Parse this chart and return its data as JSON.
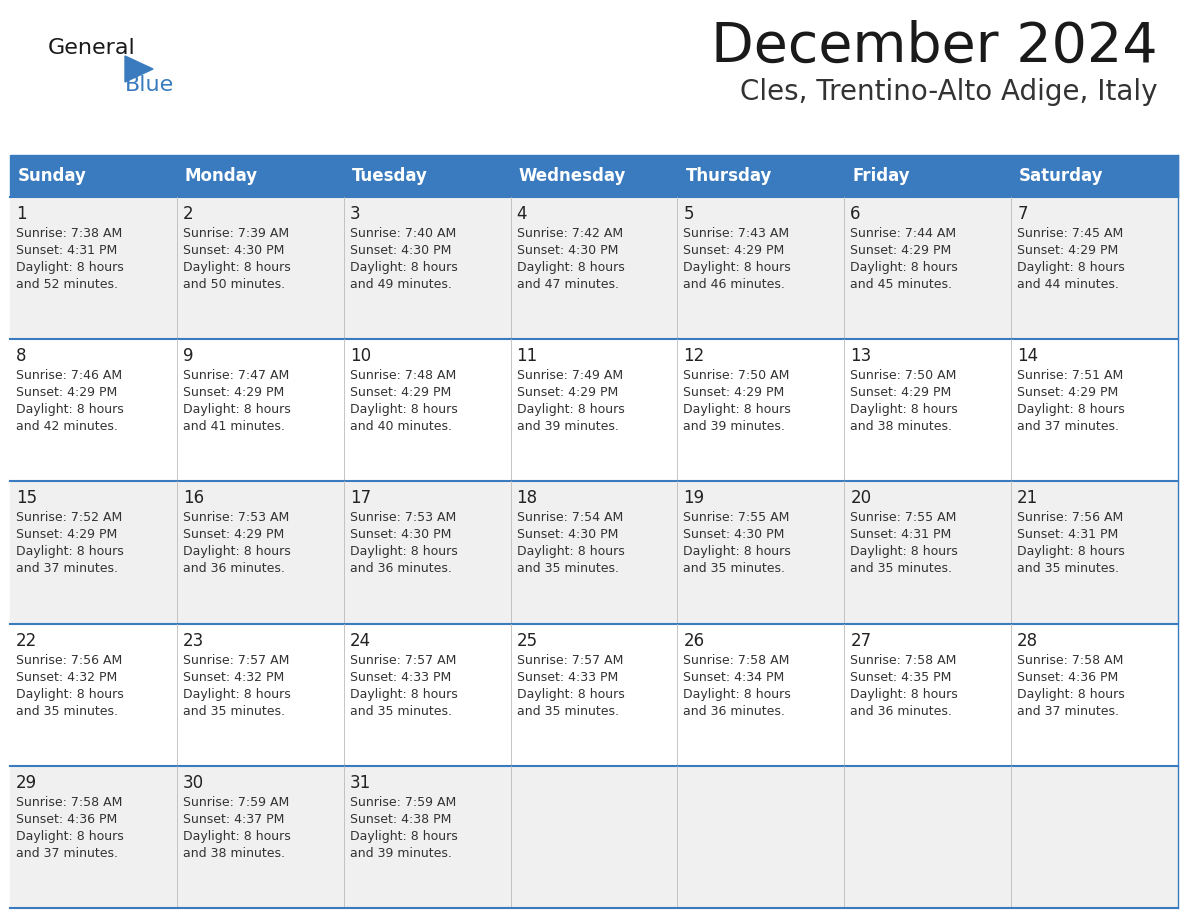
{
  "title": "December 2024",
  "subtitle": "Cles, Trentino-Alto Adige, Italy",
  "days_of_week": [
    "Sunday",
    "Monday",
    "Tuesday",
    "Wednesday",
    "Thursday",
    "Friday",
    "Saturday"
  ],
  "header_bg": "#3a7bbf",
  "header_text": "#ffffff",
  "row_bg_odd": "#f0f0f0",
  "row_bg_even": "#ffffff",
  "cell_border": "#bbbbbb",
  "row_border": "#3a7bbf",
  "day_num_color": "#222222",
  "info_text_color": "#333333",
  "title_color": "#1a1a1a",
  "subtitle_color": "#333333",
  "general_color": "#111111",
  "blue_color": "#3a7bbf",
  "calendar_data": [
    [
      {
        "day": 1,
        "sunrise": "7:38 AM",
        "sunset": "4:31 PM",
        "daylight": "8 hours and 52 minutes."
      },
      {
        "day": 2,
        "sunrise": "7:39 AM",
        "sunset": "4:30 PM",
        "daylight": "8 hours and 50 minutes."
      },
      {
        "day": 3,
        "sunrise": "7:40 AM",
        "sunset": "4:30 PM",
        "daylight": "8 hours and 49 minutes."
      },
      {
        "day": 4,
        "sunrise": "7:42 AM",
        "sunset": "4:30 PM",
        "daylight": "8 hours and 47 minutes."
      },
      {
        "day": 5,
        "sunrise": "7:43 AM",
        "sunset": "4:29 PM",
        "daylight": "8 hours and 46 minutes."
      },
      {
        "day": 6,
        "sunrise": "7:44 AM",
        "sunset": "4:29 PM",
        "daylight": "8 hours and 45 minutes."
      },
      {
        "day": 7,
        "sunrise": "7:45 AM",
        "sunset": "4:29 PM",
        "daylight": "8 hours and 44 minutes."
      }
    ],
    [
      {
        "day": 8,
        "sunrise": "7:46 AM",
        "sunset": "4:29 PM",
        "daylight": "8 hours and 42 minutes."
      },
      {
        "day": 9,
        "sunrise": "7:47 AM",
        "sunset": "4:29 PM",
        "daylight": "8 hours and 41 minutes."
      },
      {
        "day": 10,
        "sunrise": "7:48 AM",
        "sunset": "4:29 PM",
        "daylight": "8 hours and 40 minutes."
      },
      {
        "day": 11,
        "sunrise": "7:49 AM",
        "sunset": "4:29 PM",
        "daylight": "8 hours and 39 minutes."
      },
      {
        "day": 12,
        "sunrise": "7:50 AM",
        "sunset": "4:29 PM",
        "daylight": "8 hours and 39 minutes."
      },
      {
        "day": 13,
        "sunrise": "7:50 AM",
        "sunset": "4:29 PM",
        "daylight": "8 hours and 38 minutes."
      },
      {
        "day": 14,
        "sunrise": "7:51 AM",
        "sunset": "4:29 PM",
        "daylight": "8 hours and 37 minutes."
      }
    ],
    [
      {
        "day": 15,
        "sunrise": "7:52 AM",
        "sunset": "4:29 PM",
        "daylight": "8 hours and 37 minutes."
      },
      {
        "day": 16,
        "sunrise": "7:53 AM",
        "sunset": "4:29 PM",
        "daylight": "8 hours and 36 minutes."
      },
      {
        "day": 17,
        "sunrise": "7:53 AM",
        "sunset": "4:30 PM",
        "daylight": "8 hours and 36 minutes."
      },
      {
        "day": 18,
        "sunrise": "7:54 AM",
        "sunset": "4:30 PM",
        "daylight": "8 hours and 35 minutes."
      },
      {
        "day": 19,
        "sunrise": "7:55 AM",
        "sunset": "4:30 PM",
        "daylight": "8 hours and 35 minutes."
      },
      {
        "day": 20,
        "sunrise": "7:55 AM",
        "sunset": "4:31 PM",
        "daylight": "8 hours and 35 minutes."
      },
      {
        "day": 21,
        "sunrise": "7:56 AM",
        "sunset": "4:31 PM",
        "daylight": "8 hours and 35 minutes."
      }
    ],
    [
      {
        "day": 22,
        "sunrise": "7:56 AM",
        "sunset": "4:32 PM",
        "daylight": "8 hours and 35 minutes."
      },
      {
        "day": 23,
        "sunrise": "7:57 AM",
        "sunset": "4:32 PM",
        "daylight": "8 hours and 35 minutes."
      },
      {
        "day": 24,
        "sunrise": "7:57 AM",
        "sunset": "4:33 PM",
        "daylight": "8 hours and 35 minutes."
      },
      {
        "day": 25,
        "sunrise": "7:57 AM",
        "sunset": "4:33 PM",
        "daylight": "8 hours and 35 minutes."
      },
      {
        "day": 26,
        "sunrise": "7:58 AM",
        "sunset": "4:34 PM",
        "daylight": "8 hours and 36 minutes."
      },
      {
        "day": 27,
        "sunrise": "7:58 AM",
        "sunset": "4:35 PM",
        "daylight": "8 hours and 36 minutes."
      },
      {
        "day": 28,
        "sunrise": "7:58 AM",
        "sunset": "4:36 PM",
        "daylight": "8 hours and 37 minutes."
      }
    ],
    [
      {
        "day": 29,
        "sunrise": "7:58 AM",
        "sunset": "4:36 PM",
        "daylight": "8 hours and 37 minutes."
      },
      {
        "day": 30,
        "sunrise": "7:59 AM",
        "sunset": "4:37 PM",
        "daylight": "8 hours and 38 minutes."
      },
      {
        "day": 31,
        "sunrise": "7:59 AM",
        "sunset": "4:38 PM",
        "daylight": "8 hours and 39 minutes."
      },
      null,
      null,
      null,
      null
    ]
  ]
}
